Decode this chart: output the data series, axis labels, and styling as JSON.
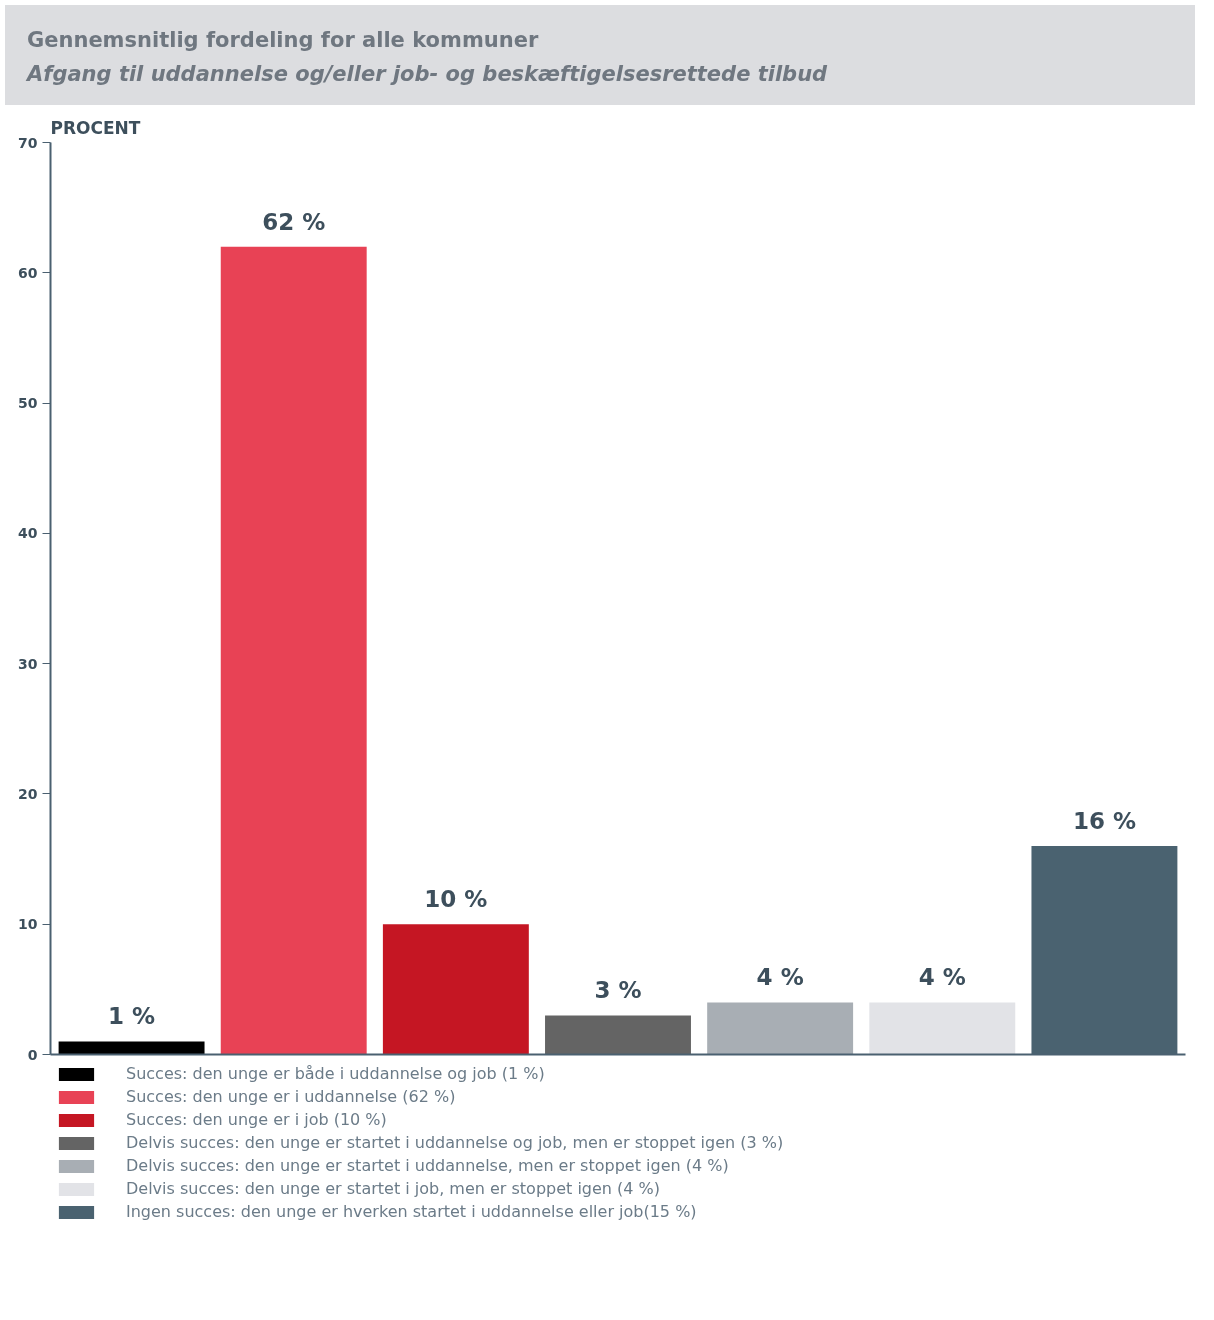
{
  "chart_data": {
    "type": "bar",
    "title": "Gennemsnitlig fordeling for alle kommuner",
    "subtitle": "Afgang til uddannelse og/eller job- og beskæftigelsesrettede tilbud",
    "ylabel": "PROCENT",
    "categories": [
      null,
      null,
      null,
      null,
      null,
      null,
      null
    ],
    "series": [
      {
        "name": "Succes: den unge er både i uddannelse og job (1 %)",
        "color": "#000000",
        "values": [
          1,
          null,
          null,
          null,
          null,
          null,
          null
        ],
        "value_labels": [
          "1 %",
          null,
          null,
          null,
          null,
          null,
          null
        ]
      },
      {
        "name": "Succes: den unge er i uddannelse (62 %)",
        "color": "#e84255",
        "values": [
          null,
          62,
          null,
          null,
          null,
          null,
          null
        ],
        "value_labels": [
          null,
          "62 %",
          null,
          null,
          null,
          null,
          null
        ]
      },
      {
        "name": "Succes: den unge er i job (10 %)",
        "color": "#c51623",
        "values": [
          null,
          null,
          10,
          null,
          null,
          null,
          null
        ],
        "value_labels": [
          null,
          null,
          "10 %",
          null,
          null,
          null,
          null
        ]
      },
      {
        "name": "Delvis succes: den unge er startet i uddannelse og job, men er stoppet igen (3 %)",
        "color": "#646464",
        "values": [
          null,
          null,
          null,
          3,
          null,
          null,
          null
        ],
        "value_labels": [
          null,
          null,
          null,
          "3 %",
          null,
          null,
          null
        ]
      },
      {
        "name": "Delvis succes: den unge er startet i uddannelse, men er stoppet igen (4 %)",
        "color": "#a8aeb4",
        "values": [
          null,
          null,
          null,
          null,
          4,
          null,
          null
        ],
        "value_labels": [
          null,
          null,
          null,
          null,
          "4 %",
          null,
          null
        ]
      },
      {
        "name": "Delvis succes: den unge er startet i job, men er stoppet igen (4 %)",
        "color": "#e2e3e7",
        "values": [
          null,
          null,
          null,
          null,
          null,
          4,
          null
        ],
        "value_labels": [
          null,
          null,
          null,
          null,
          null,
          "4 %",
          null
        ]
      },
      {
        "name": "Ingen succes: den unge er hverken startet i uddannelse eller job(15 %)",
        "color": "#4a6270",
        "values": [
          null,
          null,
          null,
          null,
          null,
          null,
          16
        ],
        "value_labels": [
          null,
          null,
          null,
          null,
          null,
          null,
          "16 %"
        ]
      }
    ],
    "ylim": [
      0,
      70
    ],
    "yticks": [
      0,
      10,
      20,
      30,
      40,
      50,
      60,
      70
    ],
    "grid": false,
    "legend": "bottom",
    "tick_labels": "y"
  }
}
